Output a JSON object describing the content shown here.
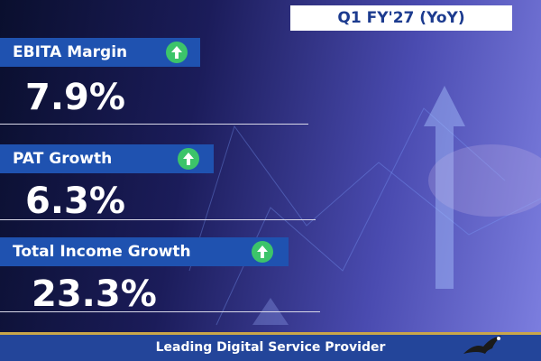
{
  "header": {
    "period": "Q1 FY'27 (YoY)"
  },
  "metrics": [
    {
      "label": "EBITA Margin",
      "value": "7.9%"
    },
    {
      "label": "PAT Growth",
      "value": "6.3%"
    },
    {
      "label": "Total Income Growth",
      "value": "23.3%"
    }
  ],
  "footer": {
    "tagline": "Leading Digital Service Provider"
  }
}
